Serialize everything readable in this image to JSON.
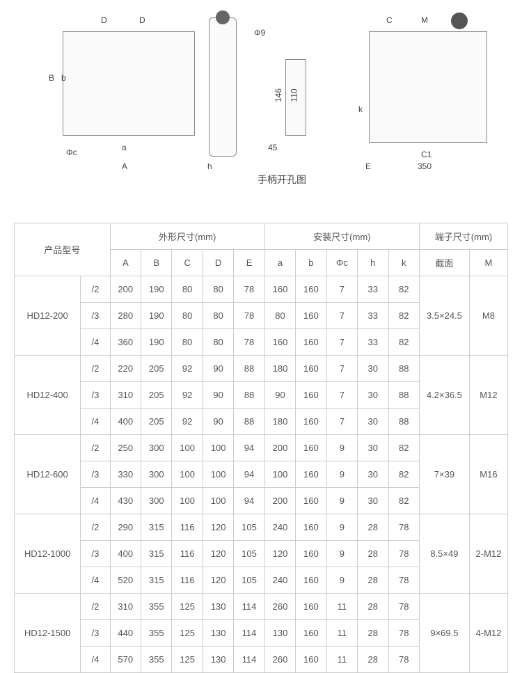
{
  "diagram": {
    "caption": "手柄开孔图",
    "labels": {
      "A": "A",
      "B": "B",
      "C": "C",
      "D": "D",
      "E": "E",
      "a": "a",
      "b": "b",
      "phi_c": "Φc",
      "h": "h",
      "k": "k",
      "M": "M",
      "C1": "C1",
      "phi9": "Φ9",
      "v146": "146",
      "v110": "110",
      "v45": "45",
      "v350": "350"
    }
  },
  "table": {
    "header": {
      "model": "产品型号",
      "outline": "外形尺寸(mm)",
      "install": "安装尺寸(mm)",
      "terminal": "端子尺寸(mm)",
      "cols": {
        "A": "A",
        "B": "B",
        "C": "C",
        "D": "D",
        "E": "E",
        "a": "a",
        "b": "b",
        "phic": "Φc",
        "h": "h",
        "k": "k",
        "section": "截面",
        "M": "M"
      }
    },
    "groups": [
      {
        "model": "HD12-200",
        "section": "3.5×24.5",
        "M": "M8",
        "rows": [
          {
            "v": "/2",
            "A": "200",
            "B": "190",
            "C": "80",
            "D": "80",
            "E": "78",
            "a": "160",
            "b": "160",
            "phic": "7",
            "h": "33",
            "k": "82"
          },
          {
            "v": "/3",
            "A": "280",
            "B": "190",
            "C": "80",
            "D": "80",
            "E": "78",
            "a": "80",
            "b": "160",
            "phic": "7",
            "h": "33",
            "k": "82"
          },
          {
            "v": "/4",
            "A": "360",
            "B": "190",
            "C": "80",
            "D": "80",
            "E": "78",
            "a": "160",
            "b": "160",
            "phic": "7",
            "h": "33",
            "k": "82"
          }
        ]
      },
      {
        "model": "HD12-400",
        "section": "4.2×36.5",
        "M": "M12",
        "rows": [
          {
            "v": "/2",
            "A": "220",
            "B": "205",
            "C": "92",
            "D": "90",
            "E": "88",
            "a": "180",
            "b": "160",
            "phic": "7",
            "h": "30",
            "k": "88"
          },
          {
            "v": "/3",
            "A": "310",
            "B": "205",
            "C": "92",
            "D": "90",
            "E": "88",
            "a": "90",
            "b": "160",
            "phic": "7",
            "h": "30",
            "k": "88"
          },
          {
            "v": "/4",
            "A": "400",
            "B": "205",
            "C": "92",
            "D": "90",
            "E": "88",
            "a": "180",
            "b": "160",
            "phic": "7",
            "h": "30",
            "k": "88"
          }
        ]
      },
      {
        "model": "HD12-600",
        "section": "7×39",
        "M": "M16",
        "rows": [
          {
            "v": "/2",
            "A": "250",
            "B": "300",
            "C": "100",
            "D": "100",
            "E": "94",
            "a": "200",
            "b": "160",
            "phic": "9",
            "h": "30",
            "k": "82"
          },
          {
            "v": "/3",
            "A": "330",
            "B": "300",
            "C": "100",
            "D": "100",
            "E": "94",
            "a": "100",
            "b": "160",
            "phic": "9",
            "h": "30",
            "k": "82"
          },
          {
            "v": "/4",
            "A": "430",
            "B": "300",
            "C": "100",
            "D": "100",
            "E": "94",
            "a": "200",
            "b": "160",
            "phic": "9",
            "h": "30",
            "k": "82"
          }
        ]
      },
      {
        "model": "HD12-1000",
        "section": "8.5×49",
        "M": "2-M12",
        "rows": [
          {
            "v": "/2",
            "A": "290",
            "B": "315",
            "C": "116",
            "D": "120",
            "E": "105",
            "a": "240",
            "b": "160",
            "phic": "9",
            "h": "28",
            "k": "78"
          },
          {
            "v": "/3",
            "A": "400",
            "B": "315",
            "C": "116",
            "D": "120",
            "E": "105",
            "a": "120",
            "b": "160",
            "phic": "9",
            "h": "28",
            "k": "78"
          },
          {
            "v": "/4",
            "A": "520",
            "B": "315",
            "C": "116",
            "D": "120",
            "E": "105",
            "a": "240",
            "b": "160",
            "phic": "9",
            "h": "28",
            "k": "78"
          }
        ]
      },
      {
        "model": "HD12-1500",
        "section": "9×69.5",
        "M": "4-M12",
        "rows": [
          {
            "v": "/2",
            "A": "310",
            "B": "355",
            "C": "125",
            "D": "130",
            "E": "114",
            "a": "260",
            "b": "160",
            "phic": "11",
            "h": "28",
            "k": "78"
          },
          {
            "v": "/3",
            "A": "440",
            "B": "355",
            "C": "125",
            "D": "130",
            "E": "114",
            "a": "130",
            "b": "160",
            "phic": "11",
            "h": "28",
            "k": "78"
          },
          {
            "v": "/4",
            "A": "570",
            "B": "355",
            "C": "125",
            "D": "130",
            "E": "114",
            "a": "260",
            "b": "160",
            "phic": "11",
            "h": "28",
            "k": "78"
          }
        ]
      }
    ]
  }
}
